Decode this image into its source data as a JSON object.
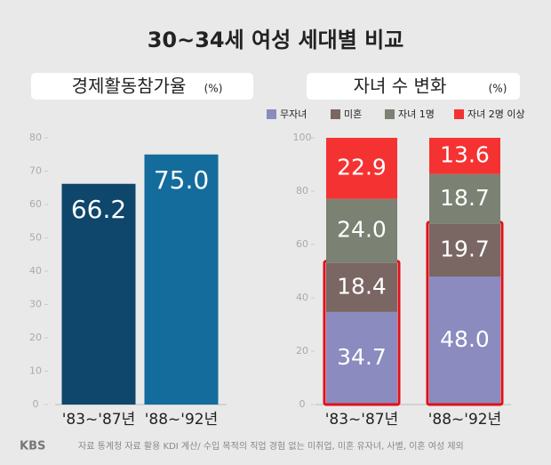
{
  "title": "30~34세 여성 세대별 비교",
  "chart_data": [
    {
      "type": "bar",
      "title": "경제활동참가율",
      "unit": "(%)",
      "categories": [
        "'83~'87년",
        "'88~'92년"
      ],
      "values": [
        66.2,
        75.0
      ],
      "value_labels": [
        "66.2",
        "75.0"
      ],
      "colors": [
        "#0e466c",
        "#136c9c"
      ],
      "ylim": [
        0,
        80
      ],
      "yticks": [
        0,
        10,
        20,
        30,
        40,
        50,
        60,
        70,
        80
      ]
    },
    {
      "type": "stacked_bar",
      "title": "자녀 수 변화",
      "unit": "(%)",
      "categories": [
        "'83~'87년",
        "'88~'92년"
      ],
      "series": [
        {
          "name": "무자녀",
          "color": "#8b8bbf",
          "values": [
            34.7,
            48.0
          ],
          "value_labels": [
            "34.7",
            "48.0"
          ]
        },
        {
          "name": "미혼",
          "color": "#7a6662",
          "values": [
            18.4,
            19.7
          ],
          "value_labels": [
            "18.4",
            "19.7"
          ]
        },
        {
          "name": "자녀 1명",
          "color": "#7b8173",
          "values": [
            24.0,
            18.7
          ],
          "value_labels": [
            "24.0",
            "18.7"
          ]
        },
        {
          "name": "자녀 2명 이상",
          "color": "#f53232",
          "values": [
            22.9,
            13.6
          ],
          "value_labels": [
            "22.9",
            "13.6"
          ]
        }
      ],
      "ylim": [
        0,
        100
      ],
      "yticks": [
        0,
        20,
        40,
        60,
        80,
        100
      ]
    }
  ],
  "footer": {
    "logo": "KBS",
    "source": "자료 통계청 자료 활용 KDI 계산/ 수입 목적의 직업 경험 없는 미취업, 미혼 유자녀, 사별, 이혼 여성 제외"
  }
}
